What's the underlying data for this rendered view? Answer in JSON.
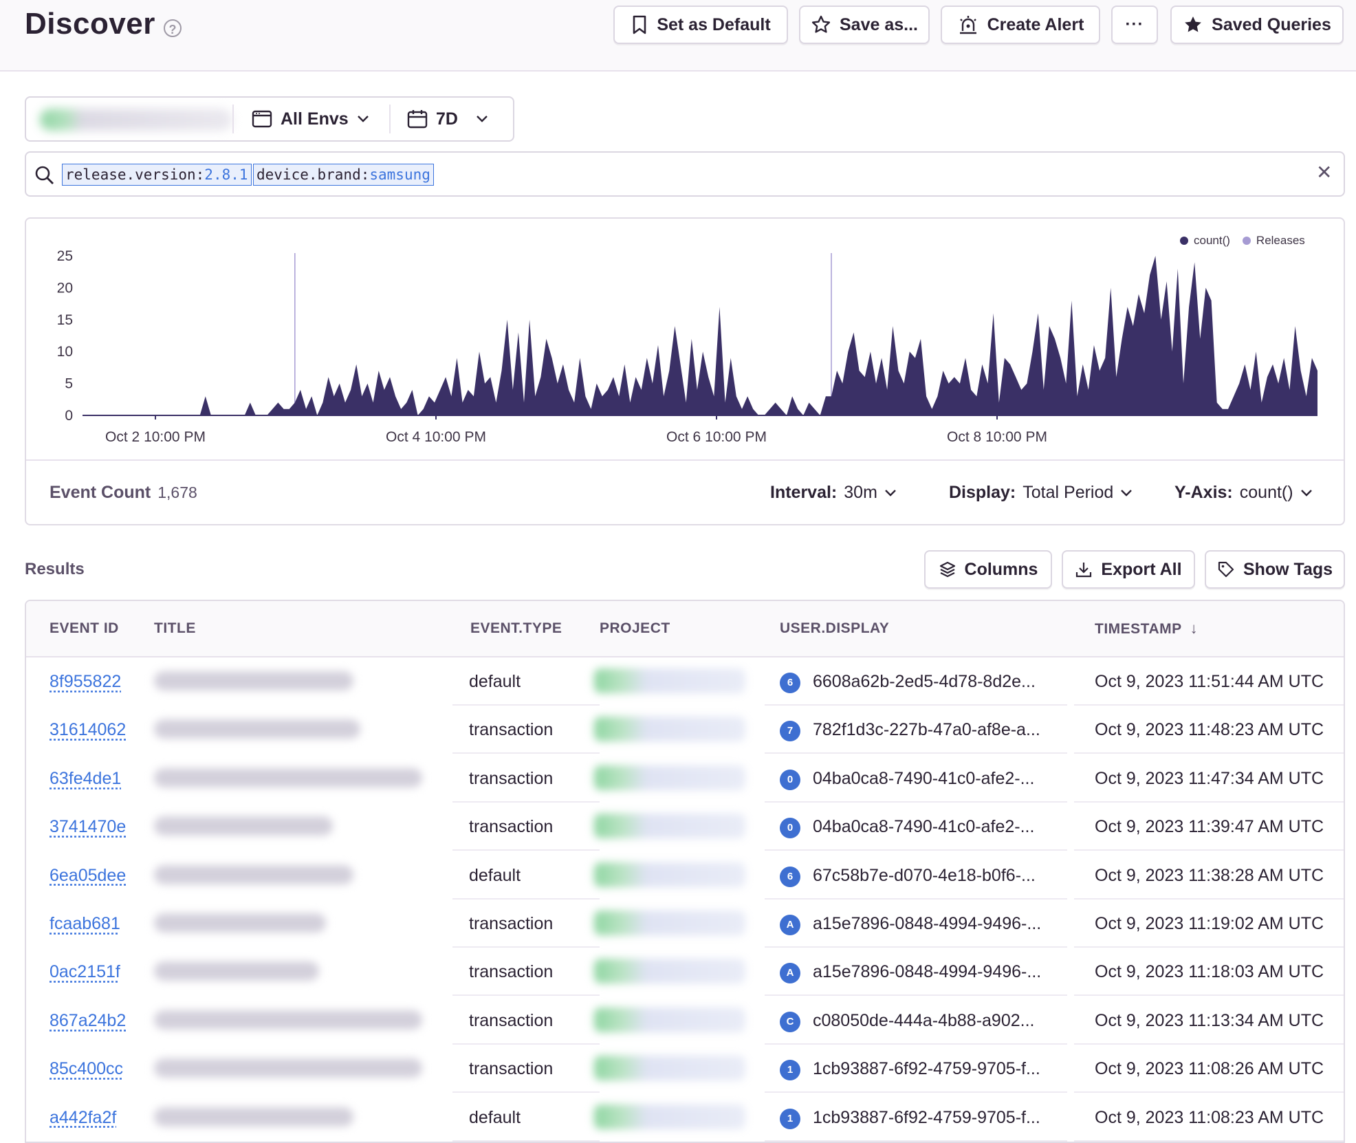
{
  "header": {
    "title": "Discover",
    "help_glyph": "?",
    "buttons": {
      "set_default": "Set as Default",
      "save_as": "Save as...",
      "create_alert": "Create Alert",
      "more": "···",
      "saved_queries": "Saved Queries"
    }
  },
  "filters": {
    "environment": "All Envs",
    "period": "7D"
  },
  "search": {
    "tokens": [
      {
        "key": "release.version:",
        "value": "2.8.1"
      },
      {
        "key": "device.brand:",
        "value": "samsung"
      }
    ],
    "clear_glyph": "✕"
  },
  "chart_data": {
    "type": "area",
    "title": "",
    "xlabel": "",
    "ylabel": "",
    "ylim": [
      0,
      25
    ],
    "yticks": [
      "25",
      "20",
      "15",
      "10",
      "5",
      "0"
    ],
    "xticks": [
      "Oct 2 10:00 PM",
      "Oct 4 10:00 PM",
      "Oct 6 10:00 PM",
      "Oct 8 10:00 PM"
    ],
    "legend": {
      "position": "top-right",
      "entries": [
        "count()",
        "Releases"
      ]
    },
    "colors": {
      "count": "#3a3066",
      "releases": "#a69bd3"
    },
    "release_markers_at_index": [
      38,
      134
    ],
    "series": [
      {
        "name": "count()",
        "values": [
          0,
          0,
          0,
          0,
          0,
          0,
          0,
          0,
          0,
          0,
          0,
          0,
          0,
          0,
          0,
          0,
          0,
          0,
          0,
          0,
          0,
          0,
          3,
          0,
          0,
          0,
          0,
          0,
          0,
          0,
          2,
          0,
          0,
          0,
          1,
          2,
          1,
          1,
          2,
          4,
          1,
          3,
          0,
          2,
          6,
          3,
          5,
          2,
          4,
          8,
          3,
          5,
          2,
          7,
          4,
          6,
          3,
          1,
          2,
          4,
          0,
          1,
          3,
          2,
          4,
          6,
          3,
          9,
          2,
          4,
          3,
          10,
          5,
          6,
          2,
          7,
          15,
          4,
          13,
          2,
          15,
          3,
          6,
          12,
          9,
          5,
          8,
          4,
          2,
          9,
          3,
          1,
          5,
          3,
          4,
          6,
          3,
          8,
          2,
          6,
          4,
          9,
          5,
          11,
          3,
          7,
          14,
          8,
          2,
          12,
          4,
          10,
          6,
          3,
          17,
          2,
          9,
          3,
          1,
          3,
          1,
          0,
          0,
          1,
          2,
          1,
          0,
          3,
          1,
          0,
          2,
          1,
          0,
          3,
          3,
          7,
          5,
          10,
          13,
          7,
          6,
          10,
          5,
          9,
          4,
          14,
          7,
          5,
          10,
          9,
          12,
          3,
          1,
          3,
          7,
          5,
          6,
          5,
          9,
          4,
          3,
          8,
          5,
          16,
          2,
          9,
          8,
          6,
          4,
          5,
          10,
          16,
          4,
          14,
          12,
          9,
          5,
          18,
          3,
          8,
          4,
          11,
          7,
          9,
          20,
          6,
          12,
          17,
          14,
          19,
          16,
          22,
          25,
          15,
          21,
          10,
          23,
          5,
          17,
          24,
          12,
          20,
          18,
          2,
          1,
          1,
          3,
          5,
          8,
          4,
          10,
          2,
          6,
          8,
          5,
          9,
          4,
          14,
          7,
          3,
          9,
          7
        ]
      }
    ]
  },
  "chart_footer": {
    "event_count_label": "Event Count",
    "event_count_value": "1,678",
    "interval_label": "Interval:",
    "interval_value": "30m",
    "display_label": "Display:",
    "display_value": "Total Period",
    "yaxis_label": "Y-Axis:",
    "yaxis_value": "count()"
  },
  "results": {
    "label": "Results",
    "buttons": {
      "columns": "Columns",
      "export_all": "Export All",
      "show_tags": "Show Tags"
    },
    "headers": [
      "EVENT ID",
      "TITLE",
      "EVENT.TYPE",
      "PROJECT",
      "USER.DISPLAY",
      "TIMESTAMP"
    ],
    "sort_glyph": "↓",
    "rows": [
      {
        "id": "8f955822",
        "type": "default",
        "badge": "6",
        "user": "6608a62b-2ed5-4d78-8d2e...",
        "ts": "Oct 9, 2023 11:51:44 AM UTC"
      },
      {
        "id": "31614062",
        "type": "transaction",
        "badge": "7",
        "user": "782f1d3c-227b-47a0-af8e-a...",
        "ts": "Oct 9, 2023 11:48:23 AM UTC"
      },
      {
        "id": "63fe4de1",
        "type": "transaction",
        "badge": "0",
        "user": "04ba0ca8-7490-41c0-afe2-...",
        "ts": "Oct 9, 2023 11:47:34 AM UTC"
      },
      {
        "id": "3741470e",
        "type": "transaction",
        "badge": "0",
        "user": "04ba0ca8-7490-41c0-afe2-...",
        "ts": "Oct 9, 2023 11:39:47 AM UTC"
      },
      {
        "id": "6ea05dee",
        "type": "default",
        "badge": "6",
        "user": "67c58b7e-d070-4e18-b0f6-...",
        "ts": "Oct 9, 2023 11:38:28 AM UTC"
      },
      {
        "id": "fcaab681",
        "type": "transaction",
        "badge": "A",
        "user": "a15e7896-0848-4994-9496-...",
        "ts": "Oct 9, 2023 11:19:02 AM UTC"
      },
      {
        "id": "0ac2151f",
        "type": "transaction",
        "badge": "A",
        "user": "a15e7896-0848-4994-9496-...",
        "ts": "Oct 9, 2023 11:18:03 AM UTC"
      },
      {
        "id": "867a24b2",
        "type": "transaction",
        "badge": "C",
        "user": "c08050de-444a-4b88-a902...",
        "ts": "Oct 9, 2023 11:13:34 AM UTC"
      },
      {
        "id": "85c400cc",
        "type": "transaction",
        "badge": "1",
        "user": "1cb93887-6f92-4759-9705-f...",
        "ts": "Oct 9, 2023 11:08:26 AM UTC"
      },
      {
        "id": "a442fa2f",
        "type": "default",
        "badge": "1",
        "user": "1cb93887-6f92-4759-9705-f...",
        "ts": "Oct 9, 2023 11:08:23 AM UTC"
      }
    ]
  }
}
